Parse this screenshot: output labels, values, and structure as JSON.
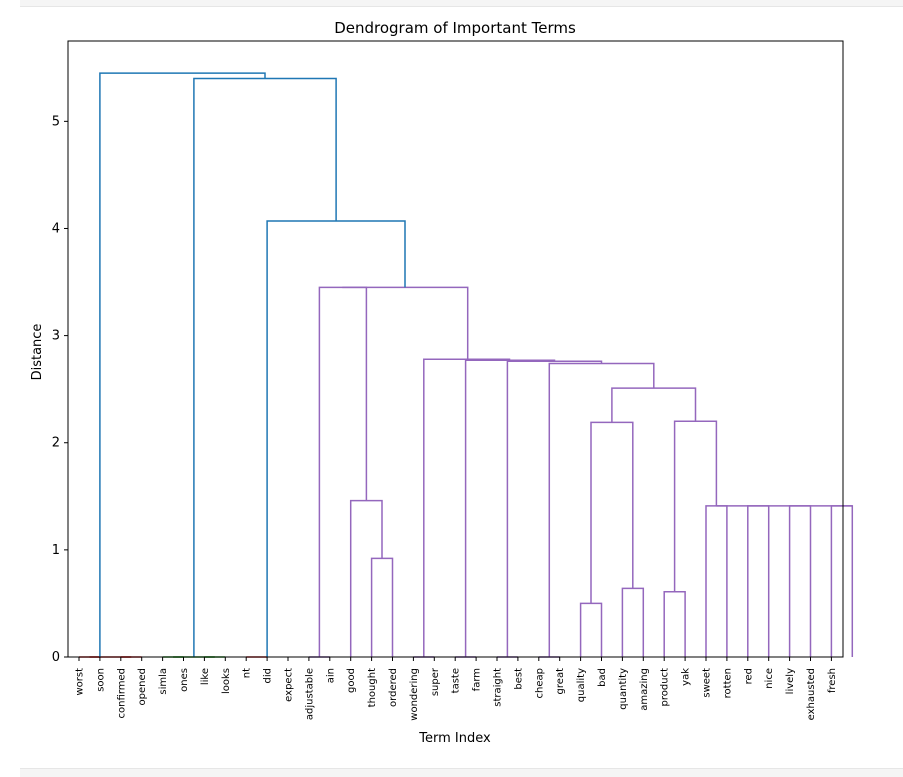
{
  "chart_data": {
    "type": "dendrogram",
    "title": "Dendrogram of Important Terms",
    "xlabel": "Term Index",
    "ylabel": "Distance",
    "ylim": [
      0,
      5.75
    ],
    "yticks": [
      "0",
      "1",
      "2",
      "3",
      "4",
      "5"
    ],
    "leaves": [
      "worst",
      "soon",
      "confirmed",
      "opened",
      "simla",
      "ones",
      "like",
      "looks",
      "nt",
      "did",
      "expect",
      "adjustable",
      "ain",
      "good",
      "thought",
      "ordered",
      "wondering",
      "super",
      "taste",
      "farm",
      "straight",
      "best",
      "cheap",
      "great",
      "quality",
      "bad",
      "quantity",
      "amazing",
      "product",
      "yak",
      "sweet",
      "rotten",
      "red",
      "nice",
      "lively",
      "exhausted",
      "fresh"
    ],
    "colors": {
      "red": "#d62728",
      "green": "#2ca02c",
      "purple": "#9467bd",
      "above": "#1f77b4"
    },
    "links": [
      {
        "x": [
          0,
          0,
          1,
          1
        ],
        "y": [
          0,
          0.0,
          0.0,
          0
        ],
        "color": "red"
      },
      {
        "x": [
          2,
          2,
          3,
          3
        ],
        "y": [
          0,
          0.0,
          0.0,
          0
        ],
        "color": "red"
      },
      {
        "x": [
          0.5,
          0.5,
          2.5,
          2.5
        ],
        "y": [
          0.0,
          0.0,
          0.0,
          0.0
        ],
        "color": "red"
      },
      {
        "x": [
          4,
          4,
          5,
          5
        ],
        "y": [
          0,
          0.0,
          0.0,
          0
        ],
        "color": "green"
      },
      {
        "x": [
          6,
          6,
          7,
          7
        ],
        "y": [
          0,
          0.0,
          0.0,
          0
        ],
        "color": "green"
      },
      {
        "x": [
          4.5,
          4.5,
          6.5,
          6.5
        ],
        "y": [
          0.0,
          0.0,
          0.0,
          0.0
        ],
        "color": "green"
      },
      {
        "x": [
          8,
          8,
          9,
          9
        ],
        "y": [
          0,
          0.0,
          0.0,
          0
        ],
        "color": "red"
      },
      {
        "x": [
          11,
          11,
          12,
          12
        ],
        "y": [
          0,
          0.0,
          0.0,
          0
        ],
        "color": "purple"
      },
      {
        "x": [
          14,
          14,
          15,
          15
        ],
        "y": [
          0,
          0.92,
          0.92,
          0
        ],
        "color": "purple"
      },
      {
        "x": [
          13,
          13,
          14.5,
          14.5
        ],
        "y": [
          0,
          1.46,
          1.46,
          0.92
        ],
        "color": "purple"
      },
      {
        "x": [
          11.5,
          11.5,
          13.75,
          13.75
        ],
        "y": [
          0.0,
          3.45,
          3.45,
          1.46
        ],
        "color": "purple"
      },
      {
        "x": [
          16,
          16,
          17,
          17
        ],
        "y": [
          0,
          0.0,
          0.0,
          0
        ],
        "color": "purple"
      },
      {
        "x": [
          18,
          18,
          19,
          19
        ],
        "y": [
          0,
          0.0,
          0.0,
          0
        ],
        "color": "purple"
      },
      {
        "x": [
          20,
          20,
          21,
          21
        ],
        "y": [
          0,
          0.0,
          0.0,
          0
        ],
        "color": "purple"
      },
      {
        "x": [
          22,
          22,
          23,
          23
        ],
        "y": [
          0,
          0.0,
          0.0,
          0
        ],
        "color": "purple"
      },
      {
        "x": [
          24,
          24,
          25,
          25
        ],
        "y": [
          0,
          0.5,
          0.5,
          0
        ],
        "color": "purple"
      },
      {
        "x": [
          26,
          26,
          27,
          27
        ],
        "y": [
          0,
          0.64,
          0.64,
          0
        ],
        "color": "purple"
      },
      {
        "x": [
          24.5,
          24.5,
          26.5,
          26.5
        ],
        "y": [
          0.5,
          2.19,
          2.19,
          0.64
        ],
        "color": "purple"
      },
      {
        "x": [
          28,
          28,
          29,
          29
        ],
        "y": [
          0,
          0.61,
          0.61,
          0
        ],
        "color": "purple"
      },
      {
        "x": [
          30,
          30,
          31,
          31
        ],
        "y": [
          0,
          1.41,
          1.41,
          0
        ],
        "color": "purple"
      },
      {
        "x": [
          32,
          32,
          33,
          33
        ],
        "y": [
          0,
          1.41,
          1.41,
          0
        ],
        "color": "purple"
      },
      {
        "x": [
          34,
          34,
          35,
          35
        ],
        "y": [
          0,
          1.41,
          1.41,
          0
        ],
        "color": "purple"
      },
      {
        "x": [
          36,
          36,
          37,
          37
        ],
        "y": [
          0,
          1.41,
          1.41,
          0
        ],
        "color": "purple"
      },
      {
        "x": [
          30.5,
          30.5,
          37,
          37
        ],
        "y": [
          1.41,
          1.41,
          1.41,
          1.41
        ],
        "color": "purple"
      },
      {
        "x": [
          28.5,
          28.5,
          30.5,
          30.5
        ],
        "y": [
          0.61,
          2.2,
          2.2,
          1.41
        ],
        "color": "purple"
      },
      {
        "x": [
          25.5,
          25.5,
          29.5,
          29.5
        ],
        "y": [
          2.19,
          2.51,
          2.51,
          2.2
        ],
        "color": "purple"
      },
      {
        "x": [
          22.5,
          22.5,
          27.5,
          27.5
        ],
        "y": [
          0.0,
          2.74,
          2.74,
          2.51
        ],
        "color": "purple"
      },
      {
        "x": [
          20.5,
          20.5,
          25.0,
          25.0
        ],
        "y": [
          0.0,
          2.76,
          2.76,
          2.74
        ],
        "color": "purple"
      },
      {
        "x": [
          18.5,
          18.5,
          22.75,
          22.75
        ],
        "y": [
          0.0,
          2.77,
          2.77,
          2.76
        ],
        "color": "purple"
      },
      {
        "x": [
          16.5,
          16.5,
          20.6,
          20.6
        ],
        "y": [
          0.0,
          2.78,
          2.78,
          2.77
        ],
        "color": "purple"
      },
      {
        "x": [
          12.6,
          12.6,
          18.6,
          18.6
        ],
        "y": [
          3.45,
          3.45,
          3.45,
          2.78
        ],
        "color": "purple"
      },
      {
        "x": [
          9.0,
          9.0,
          15.6,
          15.6
        ],
        "y": [
          0.0,
          4.07,
          4.07,
          3.45
        ],
        "color": "above"
      },
      {
        "x": [
          5.5,
          5.5,
          12.3,
          12.3
        ],
        "y": [
          0.0,
          5.4,
          5.4,
          4.07
        ],
        "color": "above"
      },
      {
        "x": [
          1.0,
          1.0,
          8.9,
          8.9
        ],
        "y": [
          0.0,
          5.45,
          5.45,
          5.4
        ],
        "color": "above"
      }
    ]
  }
}
